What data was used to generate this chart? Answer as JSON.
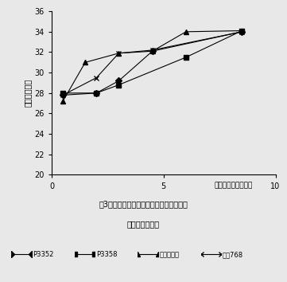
{
  "series": [
    {
      "label": "P3352",
      "x": [
        0.5,
        2.0,
        3.0,
        4.5,
        8.5
      ],
      "y": [
        27.8,
        28.0,
        29.2,
        32.1,
        34.0
      ],
      "marker": "D",
      "linestyle": "-",
      "color": "#000000",
      "markersize": 4,
      "markerfacecolor": "#000000"
    },
    {
      "label": "P3358",
      "x": [
        0.5,
        2.0,
        3.0,
        6.0,
        8.5
      ],
      "y": [
        28.0,
        28.0,
        28.8,
        31.5,
        34.1
      ],
      "marker": "s",
      "linestyle": "-",
      "color": "#000000",
      "markersize": 4,
      "markerfacecolor": "#000000"
    },
    {
      "label": "ナスホマレ",
      "x": [
        0.5,
        1.5,
        3.0,
        4.5,
        6.0,
        8.5
      ],
      "y": [
        27.2,
        31.0,
        31.9,
        32.1,
        34.0,
        34.1
      ],
      "marker": "^",
      "linestyle": "-",
      "color": "#000000",
      "markersize": 5,
      "markerfacecolor": "#000000"
    },
    {
      "label": "農交768",
      "x": [
        0.5,
        2.0,
        3.0,
        4.5,
        8.5
      ],
      "y": [
        27.8,
        29.5,
        31.9,
        32.2,
        34.0
      ],
      "marker": "x",
      "linestyle": "-",
      "color": "#000000",
      "markersize": 5,
      "markerfacecolor": "none"
    }
  ],
  "xlabel": "ミルクライン降下度",
  "ylabel": "乾物率（％）",
  "caption_line1": "図3．ミルクライン降下度と収穫物全体の",
  "caption_line2": "乾物率との関係",
  "legend_labels": [
    "P3352",
    "P3358",
    "ナスホマレ",
    "農交768"
  ],
  "xlim": [
    0,
    10
  ],
  "ylim": [
    20,
    36
  ],
  "yticks": [
    20,
    22,
    24,
    26,
    28,
    30,
    32,
    34,
    36
  ],
  "xticks": [
    0,
    5,
    10
  ],
  "background_color": "#e8e8e8",
  "figsize": [
    3.61,
    3.54
  ],
  "dpi": 100
}
